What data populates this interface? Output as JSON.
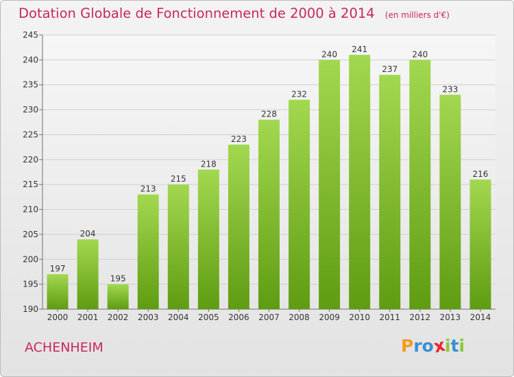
{
  "title": "Dotation Globale de Fonctionnement de 2000 à 2014",
  "unit": "(en milliers d'€)",
  "location": "ACHENHEIM",
  "logo": {
    "text": "Proxiti",
    "letters": [
      {
        "ch": "P",
        "color": "#f39c1b"
      },
      {
        "ch": "r",
        "color": "#3a8fd0"
      },
      {
        "ch": "o",
        "color": "#3a8fd0"
      },
      {
        "ch": "x",
        "color": "#e8242b"
      },
      {
        "ch": "i",
        "color": "#8cc63f"
      },
      {
        "ch": "t",
        "color": "#3a8fd0"
      },
      {
        "ch": "i",
        "color": "#8cc63f"
      }
    ]
  },
  "colors": {
    "title": "#c8265f",
    "bar_top": "#a2d84f",
    "bar_bottom": "#5f9c12",
    "grid": "#cfcfcf",
    "axis": "#6f6f6f"
  },
  "chart_data": {
    "type": "bar",
    "categories": [
      "2000",
      "2001",
      "2002",
      "2003",
      "2004",
      "2005",
      "2006",
      "2007",
      "2008",
      "2009",
      "2010",
      "2011",
      "2012",
      "2013",
      "2014"
    ],
    "values": [
      197,
      204,
      195,
      213,
      215,
      218,
      223,
      228,
      232,
      240,
      241,
      237,
      240,
      233,
      216
    ],
    "ylim": [
      190,
      245
    ],
    "yticks": [
      190,
      195,
      200,
      205,
      210,
      215,
      220,
      225,
      230,
      235,
      240,
      245
    ],
    "grid": true,
    "data_labels": true
  }
}
